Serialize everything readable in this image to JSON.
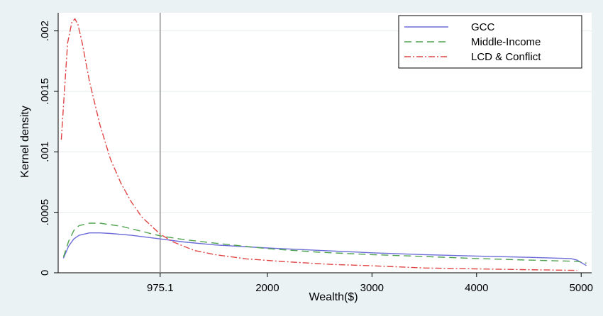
{
  "chart_data": {
    "type": "line",
    "title": "",
    "xlabel": "Wealth($)",
    "ylabel": "Kernel density",
    "xlim": [
      0,
      5100
    ],
    "ylim": [
      0,
      0.00215
    ],
    "x_ticks": [
      {
        "value": 975.1,
        "label": "975.1"
      },
      {
        "value": 2000,
        "label": "2000"
      },
      {
        "value": 3000,
        "label": "3000"
      },
      {
        "value": 4000,
        "label": "4000"
      },
      {
        "value": 5000,
        "label": "5000"
      }
    ],
    "y_ticks": [
      {
        "value": 0,
        "label": "0"
      },
      {
        "value": 0.0005,
        "label": ".0005"
      },
      {
        "value": 0.001,
        "label": ".001"
      },
      {
        "value": 0.0015,
        "label": ".0015"
      },
      {
        "value": 0.002,
        "label": ".002"
      }
    ],
    "reference_line_x": 975.1,
    "grid": true,
    "legend_position": "top-right",
    "series": [
      {
        "name": "GCC",
        "color": "#6b6bd8",
        "dash": "solid",
        "points": [
          [
            50,
            0.00012
          ],
          [
            100,
            0.00022
          ],
          [
            150,
            0.00028
          ],
          [
            200,
            0.00031
          ],
          [
            300,
            0.00033
          ],
          [
            400,
            0.00033
          ],
          [
            500,
            0.000325
          ],
          [
            700,
            0.00031
          ],
          [
            975,
            0.00028
          ],
          [
            1200,
            0.000255
          ],
          [
            1500,
            0.00023
          ],
          [
            2000,
            0.000205
          ],
          [
            2500,
            0.000185
          ],
          [
            3000,
            0.000165
          ],
          [
            3500,
            0.00015
          ],
          [
            4000,
            0.000138
          ],
          [
            4500,
            0.000128
          ],
          [
            4900,
            0.000118
          ],
          [
            4960,
            0.000105
          ],
          [
            5050,
            6e-05
          ]
        ]
      },
      {
        "name": "Middle-Income",
        "color": "#4fa34f",
        "dash": "10,6",
        "points": [
          [
            50,
            0.00013
          ],
          [
            100,
            0.00026
          ],
          [
            150,
            0.00035
          ],
          [
            200,
            0.00039
          ],
          [
            300,
            0.00041
          ],
          [
            400,
            0.00041
          ],
          [
            600,
            0.000385
          ],
          [
            975,
            0.000305
          ],
          [
            1200,
            0.000275
          ],
          [
            1500,
            0.000245
          ],
          [
            2000,
            0.0002
          ],
          [
            2500,
            0.00017
          ],
          [
            3000,
            0.00015
          ],
          [
            3500,
            0.000135
          ],
          [
            4000,
            0.000118
          ],
          [
            4500,
            0.000105
          ],
          [
            4960,
            9.5e-05
          ],
          [
            5050,
            8e-05
          ]
        ]
      },
      {
        "name": "LCD & Conflict",
        "color": "#e04545",
        "dash": "9,3,2,3",
        "points": [
          [
            30,
            0.0011
          ],
          [
            60,
            0.0015
          ],
          [
            90,
            0.0019
          ],
          [
            130,
            0.00207
          ],
          [
            160,
            0.0021
          ],
          [
            190,
            0.00205
          ],
          [
            230,
            0.0019
          ],
          [
            300,
            0.00158
          ],
          [
            400,
            0.00122
          ],
          [
            500,
            0.00094
          ],
          [
            600,
            0.00074
          ],
          [
            700,
            0.000585
          ],
          [
            800,
            0.00046
          ],
          [
            975,
            0.00032
          ],
          [
            1100,
            0.000255
          ],
          [
            1300,
            0.000185
          ],
          [
            1500,
            0.00015
          ],
          [
            1800,
            0.000115
          ],
          [
            2200,
            9e-05
          ],
          [
            2600,
            7e-05
          ],
          [
            3000,
            5.8e-05
          ],
          [
            3500,
            4e-05
          ],
          [
            4000,
            3.2e-05
          ],
          [
            4500,
            2.5e-05
          ],
          [
            4960,
            2e-05
          ]
        ]
      }
    ]
  }
}
